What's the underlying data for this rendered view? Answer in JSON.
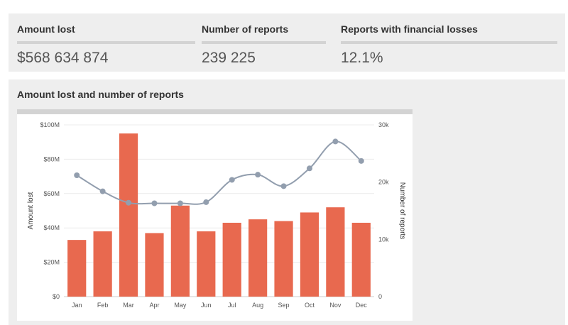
{
  "stats": [
    {
      "label": "Amount lost",
      "value": "$568 634 874"
    },
    {
      "label": "Number of reports",
      "value": "239 225"
    },
    {
      "label": "Reports with financial losses",
      "value": "12.1%"
    }
  ],
  "chart_panel": {
    "title": "Amount lost and number of reports"
  },
  "colors": {
    "bar": "#e8694f",
    "line": "#929eae",
    "point": "#929eae"
  },
  "chart_data": {
    "type": "bar+line",
    "title": "",
    "categories": [
      "Jan",
      "Feb",
      "Mar",
      "Apr",
      "May",
      "Jun",
      "Jul",
      "Aug",
      "Sep",
      "Oct",
      "Nov",
      "Dec"
    ],
    "series": [
      {
        "type": "bar",
        "axis": "left",
        "values": [
          33,
          38,
          95,
          37,
          53,
          38,
          43,
          45,
          44,
          49,
          52,
          43
        ]
      },
      {
        "type": "line",
        "axis": "right",
        "values": [
          21200,
          18400,
          16400,
          16300,
          16300,
          16500,
          20400,
          21300,
          19300,
          22400,
          27100,
          23700
        ]
      }
    ],
    "ylabel_left": "Amount lost",
    "ylabel_right": "Number of reports",
    "yticks_left": [
      "$0",
      "$20M",
      "$40M",
      "$60M",
      "$80M",
      "$100M"
    ],
    "yticks_right": [
      "0",
      "10k",
      "20k",
      "30k"
    ],
    "ylim_left": [
      0,
      100
    ],
    "ylim_right": [
      0,
      30000
    ],
    "grid": true
  }
}
